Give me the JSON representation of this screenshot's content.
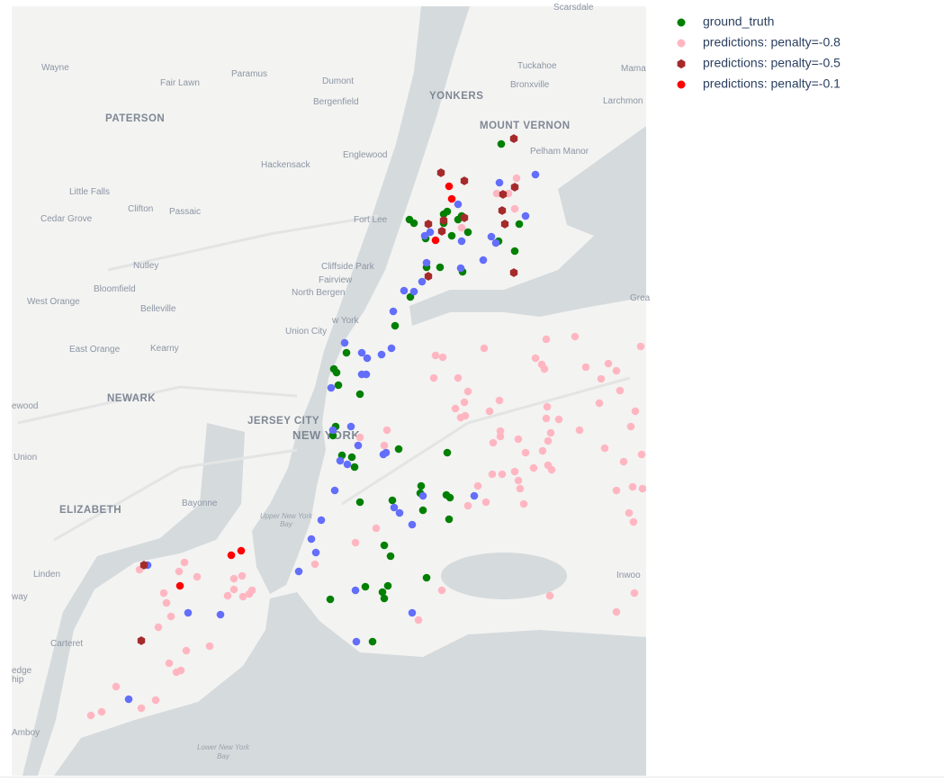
{
  "chart_data": {
    "type": "scattermapbox",
    "lonlim": [
      -74.3483,
      -73.7138
    ],
    "latlim": [
      40.4728,
      40.9858
    ],
    "series": [
      {
        "name": "ground_truth",
        "color": "#008000",
        "symbol": "circle",
        "lon": [
          -73.8587,
          -73.9505,
          -73.946,
          -73.9127,
          -73.9163,
          -73.9019,
          -73.8983,
          -73.9163,
          -73.892,
          -73.9343,
          -73.9082,
          -73.8614,
          -73.8407,
          -73.8452,
          -73.9199,
          -73.9334,
          -73.8974,
          -73.9496,
          -73.9649,
          -74.0135,
          -74.0261,
          -74.0234,
          -74.0216,
          -74.0,
          -74.0243,
          -74.027,
          -74.018,
          -74.0081,
          -74.0054,
          -73.9613,
          -73.9127,
          -73.9388,
          -73.9397,
          -73.9136,
          -73.91,
          -73.9676,
          -74.0,
          -73.937,
          -73.9109,
          -73.9757,
          -73.9694,
          -73.9334,
          -73.9721,
          -73.9946,
          -73.9775,
          -73.9757,
          -74.0297,
          -73.9874
        ],
        "lat": [
          40.894,
          40.8436,
          40.8412,
          40.849,
          40.8472,
          40.8436,
          40.846,
          40.8412,
          40.8352,
          40.831,
          40.8328,
          40.8292,
          40.8406,
          40.8226,
          40.8118,
          40.8118,
          40.8088,
          40.792,
          40.7728,
          40.7548,
          40.744,
          40.7416,
          40.7332,
          40.7272,
          40.7056,
          40.6996,
          40.6864,
          40.6852,
          40.6786,
          40.6906,
          40.6882,
          40.666,
          40.6612,
          40.66,
          40.6582,
          40.6564,
          40.6552,
          40.6498,
          40.6438,
          40.6264,
          40.6192,
          40.6048,
          40.5994,
          40.5988,
          40.5952,
          40.591,
          40.5904,
          40.5622
        ]
      },
      {
        "color": "#636efa",
        "symbol": "circle",
        "lon": [
          -73.8245,
          -73.8605,
          -73.9019,
          -73.8344,
          -73.9298,
          -73.9352,
          -73.8983,
          -73.8686,
          -73.8641,
          -73.8767,
          -73.9334,
          -73.8992,
          -73.9379,
          -73.9559,
          -73.946,
          -73.9667,
          -74.0153,
          -73.9685,
          -73.9982,
          -73.9784,
          -73.9928,
          -73.9937,
          -73.9982,
          -74.0288,
          -74.009,
          -74.027,
          -74.0018,
          -73.9766,
          -73.9739,
          -74.0198,
          -74.0126,
          -74.0252,
          -73.937,
          -73.8857,
          -73.9658,
          -73.9604,
          -73.9478,
          -74.0387,
          -74.0486,
          -74.0441,
          -74.0612,
          -74.0045,
          -74.2124,
          -74.1719,
          -74.1395,
          -73.9478,
          -74.0036,
          -74.2313
        ],
        "lat": [
          40.8736,
          40.8682,
          40.8538,
          40.846,
          40.8352,
          40.8328,
          40.8292,
          40.8322,
          40.828,
          40.8166,
          40.8148,
          40.8112,
          40.8022,
          40.7962,
          40.7956,
          40.7824,
          40.7614,
          40.7578,
          40.7548,
          40.7536,
          40.7512,
          40.7404,
          40.7404,
          40.7314,
          40.7056,
          40.7032,
          40.693,
          40.687,
          40.6882,
          40.6828,
          40.6804,
          40.663,
          40.6594,
          40.6594,
          40.6516,
          40.648,
          40.6402,
          40.6432,
          40.6306,
          40.6216,
          40.609,
          40.5964,
          40.6132,
          40.5814,
          40.5802,
          40.5814,
          40.5622,
          40.5238
        ]
      },
      {
        "name": "predictions: penalty=-0.8",
        "color": "#ffb6c1",
        "symbol": "circle",
        "lon": [
          -73.8434,
          -73.8632,
          -73.8515,
          -73.8452,
          -73.8983,
          -73.8758,
          -73.9244,
          -73.9172,
          -73.8137,
          -73.7849,
          -73.8245,
          -73.8182,
          -73.8155,
          -73.7741,
          -73.7516,
          -73.7435,
          -73.7588,
          -73.7192,
          -73.9262,
          -73.9019,
          -73.892,
          -73.8956,
          -73.9046,
          -73.8992,
          -73.8704,
          -73.8605,
          -73.8947,
          -73.8596,
          -73.8596,
          -73.8668,
          -73.8416,
          -73.973,
          -73.9757,
          -74.0,
          -73.8137,
          -73.8128,
          -73.8011,
          -73.8092,
          -73.8119,
          -73.8173,
          -73.7804,
          -73.8344,
          -73.7606,
          -73.7399,
          -73.7246,
          -73.7291,
          -73.7183,
          -73.7552,
          -73.7363,
          -73.8119,
          -73.8083,
          -73.8263,
          -73.8677,
          -73.8578,
          -73.8452,
          -73.8416,
          -73.8398,
          -73.8821,
          -73.874,
          -73.892,
          -73.8362,
          -73.7435,
          -73.7273,
          -73.7174,
          -73.7264,
          -73.7309,
          -73.7435,
          -73.7255,
          -73.8101,
          -74.0045,
          -73.9838,
          -74.045,
          -73.9181,
          -73.9415,
          -74.1755,
          -74.1809,
          -74.1629,
          -74.126,
          -74.126,
          -74.1179,
          -74.108,
          -74.1107,
          -74.1323,
          -74.117,
          -74.1962,
          -74.1935,
          -74.189,
          -74.2016,
          -74.1737,
          -74.1503,
          -74.1908,
          -74.1836,
          -74.1791,
          -74.2439,
          -74.2043,
          -74.2187,
          -74.2583,
          -74.2691,
          -74.2205
        ],
        "lat": [
          40.8712,
          40.861,
          40.861,
          40.8508,
          40.8382,
          40.7578,
          40.753,
          40.7518,
          40.7638,
          40.7656,
          40.7512,
          40.747,
          40.744,
          40.7452,
          40.7476,
          40.7428,
          40.7374,
          40.759,
          40.738,
          40.738,
          40.729,
          40.7218,
          40.7176,
          40.7116,
          40.7158,
          40.723,
          40.7128,
          40.7026,
          40.699,
          40.6948,
          40.6972,
          40.7032,
          40.693,
          40.6984,
          40.711,
          40.7188,
          40.7104,
          40.7014,
          40.696,
          40.6894,
          40.7032,
          40.6882,
          40.7212,
          40.7296,
          40.7158,
          40.7056,
          40.687,
          40.6912,
          40.6822,
          40.6798,
          40.6768,
          40.678,
          40.6738,
          40.6738,
          40.6756,
          40.6696,
          40.6642,
          40.666,
          40.6552,
          40.6528,
          40.654,
          40.663,
          40.6654,
          40.6642,
          40.642,
          40.648,
          40.582,
          40.5946,
          40.5928,
          40.6282,
          40.6378,
          40.6138,
          40.5964,
          40.5766,
          40.615,
          40.609,
          40.6054,
          40.6042,
          40.597,
          40.606,
          40.5964,
          40.594,
          40.5928,
          40.5922,
          40.5946,
          40.588,
          40.579,
          40.5718,
          40.5562,
          40.5592,
          40.5478,
          40.5418,
          40.543,
          40.5322,
          40.5232,
          40.5178,
          40.5154,
          40.513,
          40.6102
        ]
      },
      {
        "name": "predictions: penalty=-0.5",
        "color": "#a52a2a",
        "symbol": "hexagon",
        "lon": [
          -73.8461,
          -73.919,
          -73.8956,
          -73.8452,
          -73.8569,
          -73.8578,
          -73.8551,
          -73.9316,
          -73.9163,
          -73.8956,
          -73.9181,
          -73.8461,
          -73.9316,
          -74.216,
          -74.2187
        ],
        "lat": [
          40.8976,
          40.8748,
          40.8694,
          40.8652,
          40.8604,
          40.8496,
          40.8406,
          40.8406,
          40.843,
          40.8448,
          40.8358,
          40.8082,
          40.8058,
          40.6132,
          40.5628
        ]
      },
      {
        "name": "predictions: penalty=-0.1",
        "color": "#ff0000",
        "symbol": "circle",
        "lon": [
          -73.9109,
          -73.9082,
          -73.9244,
          -74.1287,
          -74.1188,
          -74.18
        ],
        "lat": [
          40.8658,
          40.8574,
          40.8298,
          40.6198,
          40.6228,
          40.5994
        ]
      }
    ]
  },
  "map_labels": [
    "Scarsdale",
    "Wayne",
    "Paramus",
    "Dumont",
    "Tuckahoe",
    "Mama",
    "Fair Lawn",
    "Bronxville",
    "YONKERS",
    "Bergenfield",
    "Larchmon",
    "PATERSON",
    "MOUNT VERNON",
    "Pelham Manor",
    "Englewood",
    "Hackensack",
    "Little Falls",
    "Clifton",
    "Passaic",
    "Cedar Grove",
    "Fort Lee",
    "Nutley",
    "Cliffside Park",
    "Fairview",
    "Bloomfield",
    "North Bergen",
    "West Orange",
    "Belleville",
    "Grea",
    "w York",
    "Union City",
    "East Orange",
    "Kearny",
    "NEWARK",
    "ewood",
    "JERSEY CITY",
    "NEW YORK",
    "Union",
    "Bayonne",
    "ELIZABETH",
    "Upper New York",
    "Bay",
    "Linden",
    "Inwoo",
    "way",
    "Carteret",
    "edge",
    "hip",
    "Amboy",
    "Lower New York",
    "Bay"
  ]
}
